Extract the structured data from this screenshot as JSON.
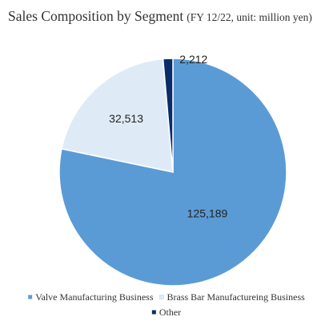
{
  "chart_data": {
    "type": "pie",
    "title": "Sales Composition by Segment",
    "subtitle": "(FY 12/22, unit: million yen)",
    "slices": [
      {
        "label": "Valve Manufacturing Business",
        "value": 125189,
        "display": "125,189",
        "color": "#5b9bd5"
      },
      {
        "label": "Brass Bar Manufactureing Business",
        "value": 32513,
        "display": "32,513",
        "color": "#deebf7"
      },
      {
        "label": "Other",
        "value": 2212,
        "display": "2,212",
        "color": "#0b2c6b"
      }
    ],
    "legend_position": "bottom"
  }
}
